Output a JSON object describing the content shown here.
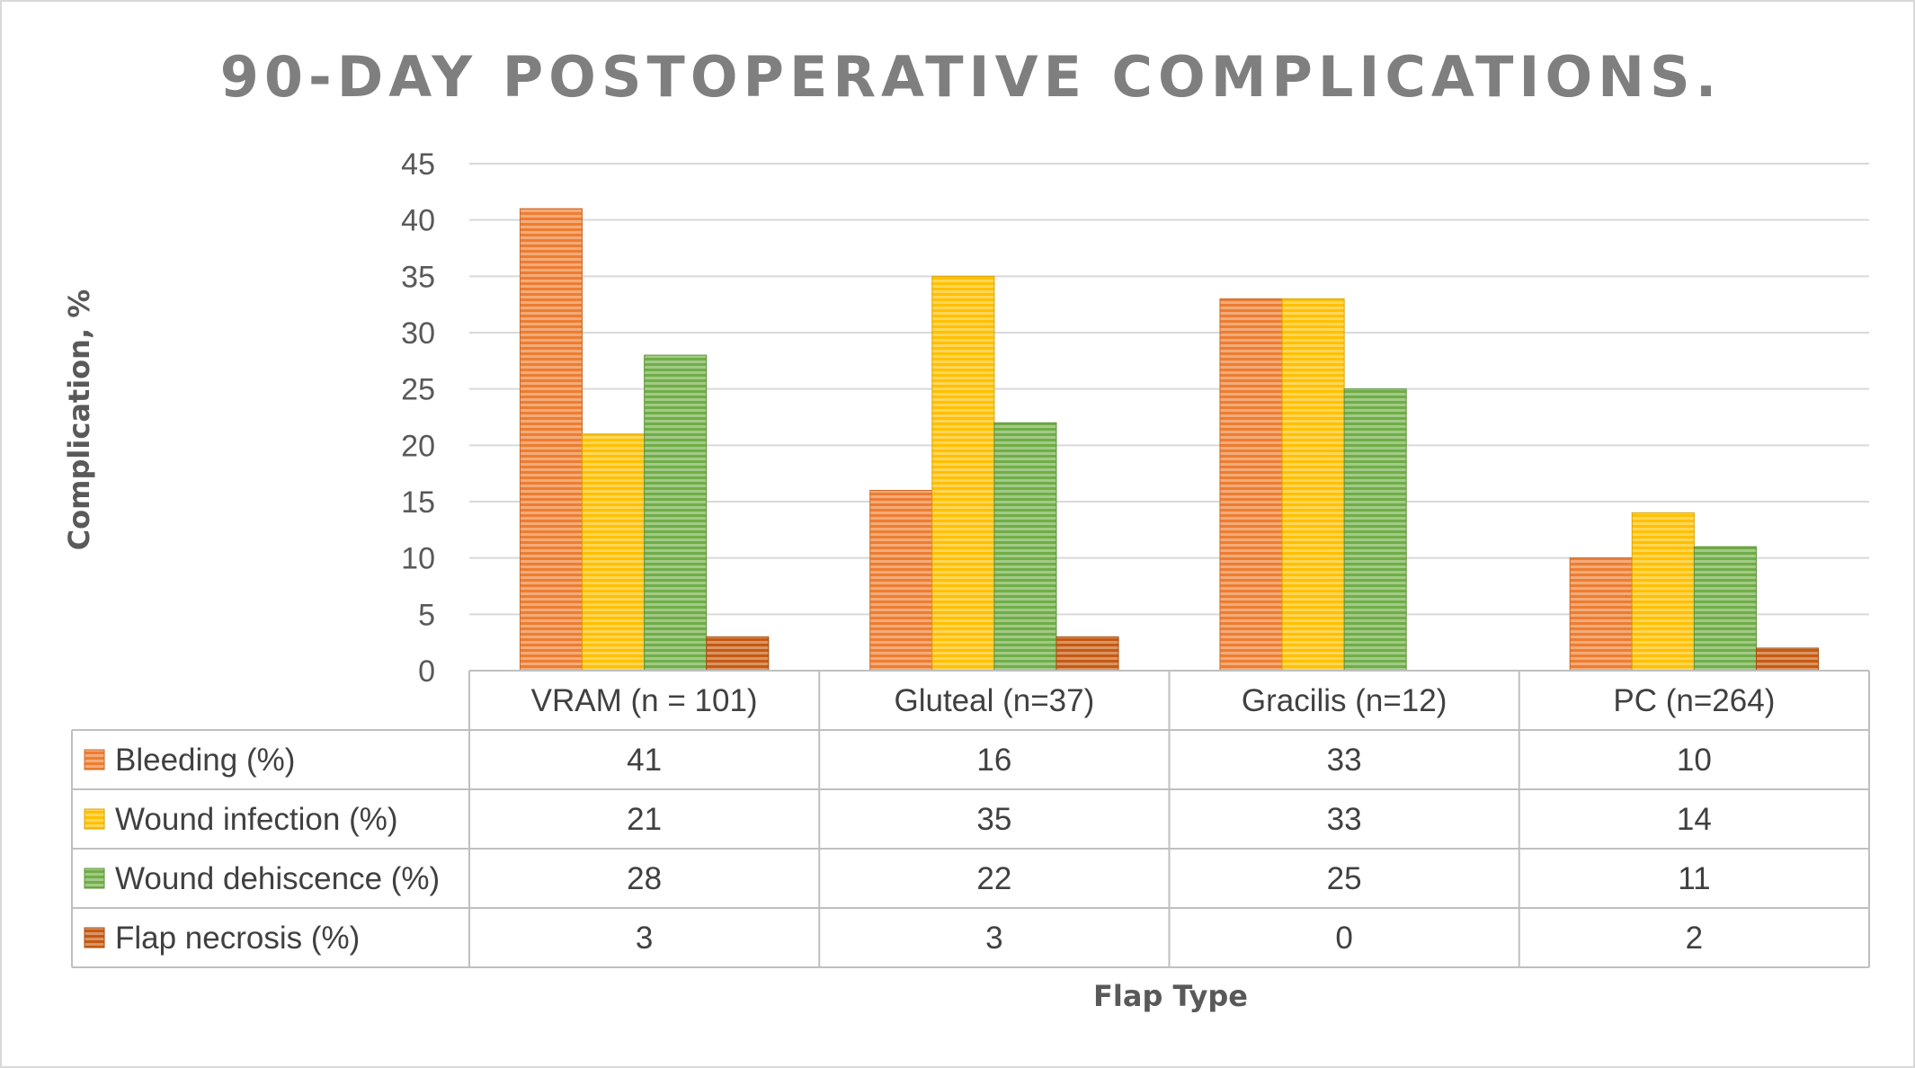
{
  "chart_data": {
    "type": "bar",
    "title": "90-DAY POSTOPERATIVE COMPLICATIONS.",
    "xlabel": "Flap Type",
    "ylabel": "Complication, %",
    "ylim": [
      0,
      45
    ],
    "yticks": [
      0,
      5,
      10,
      15,
      20,
      25,
      30,
      35,
      40,
      45
    ],
    "grid": true,
    "legend": "data-table",
    "categories": [
      "VRAM (n = 101)",
      "Gluteal (n=37)",
      "Gracilis (n=12)",
      "PC (n=264)"
    ],
    "series": [
      {
        "name": "Bleeding (%)",
        "values": [
          41,
          16,
          33,
          10
        ],
        "color": "#ed7d31"
      },
      {
        "name": "Wound infection (%)",
        "values": [
          21,
          35,
          33,
          14
        ],
        "color": "#ffc000"
      },
      {
        "name": "Wound dehiscence (%)",
        "values": [
          28,
          22,
          25,
          11
        ],
        "color": "#70ad47"
      },
      {
        "name": "Flap necrosis (%)",
        "values": [
          3,
          3,
          0,
          2
        ],
        "color": "#c55a11"
      }
    ]
  }
}
